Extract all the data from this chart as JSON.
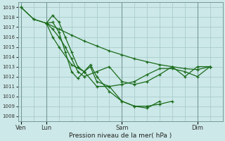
{
  "bg_color": "#cce8e8",
  "grid_color": "#aacccc",
  "line_color": "#1a6b1a",
  "marker_color": "#1a6b1a",
  "ylabel_ticks": [
    1008,
    1009,
    1010,
    1011,
    1012,
    1013,
    1014,
    1015,
    1016,
    1017,
    1018,
    1019
  ],
  "ylim": [
    1007.5,
    1019.5
  ],
  "xlabel": "Pression niveau de la mer( hPa )",
  "day_labels": [
    "Ven",
    "Lun",
    "Sam",
    "Dim"
  ],
  "day_positions": [
    0,
    4,
    16,
    28
  ],
  "xlim": [
    -0.5,
    32
  ],
  "series": [
    {
      "x": [
        0,
        2,
        4,
        6,
        8,
        10,
        12,
        14,
        16,
        18,
        20,
        22,
        24,
        26,
        28,
        30
      ],
      "y": [
        1019.0,
        1017.8,
        1017.4,
        1016.8,
        1016.2,
        1015.6,
        1015.1,
        1014.6,
        1014.2,
        1013.8,
        1013.5,
        1013.2,
        1013.0,
        1012.8,
        1012.7,
        1013.0
      ]
    },
    {
      "x": [
        0,
        2,
        4,
        5,
        6,
        7,
        8,
        9,
        10,
        12,
        14,
        16,
        18,
        20,
        22,
        24,
        26,
        28,
        30
      ],
      "y": [
        1019.0,
        1017.8,
        1017.4,
        1016.8,
        1016.0,
        1015.0,
        1013.8,
        1012.5,
        1012.0,
        1012.5,
        1013.0,
        1011.5,
        1011.2,
        1011.5,
        1012.2,
        1013.0,
        1012.0,
        1013.0,
        1013.0
      ]
    },
    {
      "x": [
        4,
        5,
        6,
        7,
        8,
        9,
        10,
        11,
        12,
        14,
        16,
        18,
        20,
        22,
        24
      ],
      "y": [
        1017.4,
        1018.2,
        1017.5,
        1016.0,
        1014.5,
        1013.0,
        1012.5,
        1013.2,
        1012.0,
        1010.5,
        1009.5,
        1009.0,
        1009.0,
        1009.2,
        1009.5
      ]
    },
    {
      "x": [
        4,
        5,
        6,
        7,
        8,
        9,
        10,
        11,
        12,
        14,
        16,
        18,
        20,
        22
      ],
      "y": [
        1017.4,
        1017.5,
        1016.5,
        1014.5,
        1012.5,
        1011.8,
        1012.5,
        1013.0,
        1011.5,
        1011.0,
        1009.5,
        1009.0,
        1008.8,
        1009.5
      ]
    },
    {
      "x": [
        4,
        5,
        6,
        8,
        10,
        12,
        14,
        16,
        18,
        20,
        22,
        24,
        26,
        28,
        30
      ],
      "y": [
        1017.4,
        1016.0,
        1015.0,
        1013.2,
        1012.5,
        1011.0,
        1011.0,
        1011.2,
        1011.5,
        1012.2,
        1012.8,
        1012.8,
        1012.5,
        1012.0,
        1013.0
      ]
    }
  ]
}
